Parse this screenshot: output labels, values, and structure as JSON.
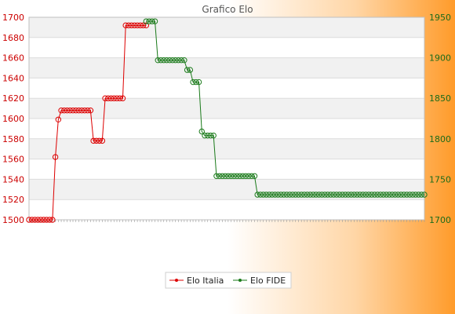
{
  "chart_data": {
    "type": "line",
    "title": "Grafico Elo",
    "left_axis": {
      "ylim": [
        1500,
        1700
      ],
      "ticks": [
        1500,
        1520,
        1540,
        1560,
        1580,
        1600,
        1620,
        1640,
        1660,
        1680,
        1700
      ],
      "color": "#cc0000"
    },
    "right_axis": {
      "ylim": [
        1700,
        1950
      ],
      "ticks": [
        1700,
        1750,
        1800,
        1850,
        1900,
        1950
      ],
      "color": "#1a6b1a"
    },
    "grid": true,
    "legend_position": "bottom",
    "x_count": 96,
    "series": [
      {
        "name": "Elo Italia",
        "axis": "left",
        "color": "#dd0000",
        "x": [
          0,
          1,
          2,
          3,
          4,
          5,
          6,
          7,
          8,
          9,
          10,
          11,
          12,
          13,
          14,
          15,
          16,
          17,
          18,
          19,
          20,
          21,
          22,
          23,
          24,
          25,
          26,
          27,
          28,
          29,
          30,
          31,
          32,
          33,
          34,
          35,
          36,
          37,
          38,
          39,
          40
        ],
        "values": [
          1500,
          1500,
          1500,
          1500,
          1500,
          1500,
          1500,
          1500,
          1500,
          1562,
          1599,
          1608,
          1608,
          1608,
          1608,
          1608,
          1608,
          1608,
          1608,
          1608,
          1608,
          1608,
          1578,
          1578,
          1578,
          1578,
          1620,
          1620,
          1620,
          1620,
          1620,
          1620,
          1620,
          1692,
          1692,
          1692,
          1692,
          1692,
          1692,
          1692,
          1692
        ]
      },
      {
        "name": "Elo FIDE",
        "axis": "right",
        "color": "#1a7a1a",
        "x": [
          40,
          41,
          42,
          43,
          44,
          45,
          46,
          47,
          48,
          49,
          50,
          51,
          52,
          53,
          54,
          55,
          56,
          57,
          58,
          59,
          60,
          61,
          62,
          63,
          64,
          65,
          66,
          67,
          68,
          69,
          70,
          71,
          72,
          73,
          74,
          75,
          76,
          77,
          78,
          79,
          80,
          81,
          82,
          83,
          84,
          85,
          86,
          87,
          88,
          89,
          90,
          91,
          92,
          93,
          94,
          95,
          96,
          97,
          98,
          99,
          100,
          101,
          102,
          103,
          104,
          105,
          106,
          107,
          108,
          109,
          110,
          111,
          112,
          113,
          114,
          115,
          116,
          117,
          118,
          119,
          120,
          121,
          122,
          123,
          124,
          125,
          126,
          127,
          128,
          129,
          130,
          131,
          132,
          133,
          134,
          135
        ],
        "values": [
          1945,
          1945,
          1945,
          1945,
          1897,
          1897,
          1897,
          1897,
          1897,
          1897,
          1897,
          1897,
          1897,
          1897,
          1885,
          1885,
          1870,
          1870,
          1870,
          1809,
          1804,
          1804,
          1804,
          1804,
          1754,
          1754,
          1754,
          1754,
          1754,
          1754,
          1754,
          1754,
          1754,
          1754,
          1754,
          1754,
          1754,
          1754,
          1731,
          1731,
          1731,
          1731,
          1731,
          1731,
          1731,
          1731,
          1731,
          1731,
          1731,
          1731,
          1731,
          1731,
          1731,
          1731,
          1731,
          1731,
          1731,
          1731,
          1731,
          1731,
          1731,
          1731,
          1731,
          1731,
          1731,
          1731,
          1731,
          1731,
          1731,
          1731,
          1731,
          1731,
          1731,
          1731,
          1731,
          1731,
          1731,
          1731,
          1731,
          1731,
          1731,
          1731,
          1731,
          1731,
          1731,
          1731,
          1731,
          1731,
          1731,
          1731,
          1731,
          1731,
          1731,
          1731,
          1731,
          1731
        ]
      }
    ]
  }
}
